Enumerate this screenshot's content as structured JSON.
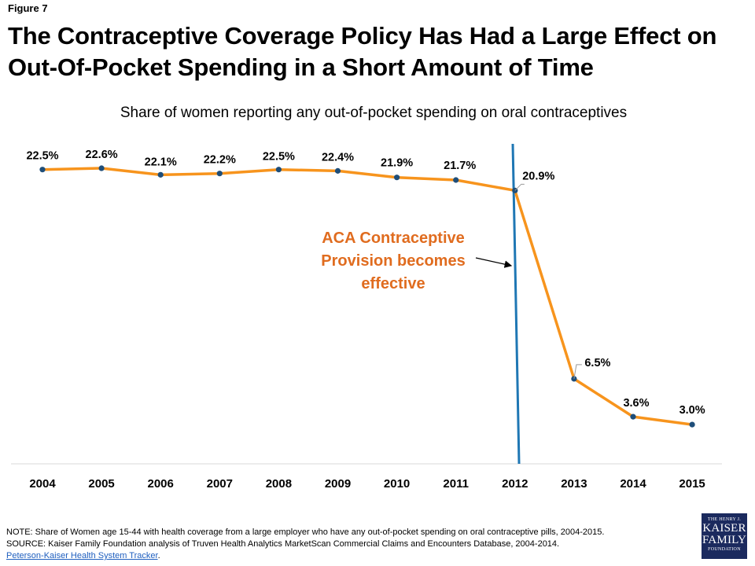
{
  "figure_label": "Figure 7",
  "title_line1": "The Contraceptive Coverage Policy Has Had a Large Effect on",
  "title_line2": "Out-Of-Pocket Spending in a Short Amount of Time",
  "colors": {
    "line": "#F7941D",
    "point": "#1F4E79",
    "vline": "#1F77B4",
    "annotation": "#E06C1F",
    "axis": "#D9D9D9",
    "logo_bg": "#1B2A5E"
  },
  "chart_data": {
    "type": "line",
    "title": "Share of women reporting any out-of-pocket spending on oral contraceptives",
    "xlabel": "",
    "ylabel": "",
    "categories": [
      "2004",
      "2005",
      "2006",
      "2007",
      "2008",
      "2009",
      "2010",
      "2011",
      "2012",
      "2013",
      "2014",
      "2015"
    ],
    "series": [
      {
        "values": [
          22.5,
          22.6,
          22.1,
          22.2,
          22.5,
          22.4,
          21.9,
          21.7,
          20.9,
          6.5,
          3.6,
          3.0
        ],
        "labels": [
          "22.5%",
          "22.6%",
          "22.1%",
          "22.2%",
          "22.5%",
          "22.4%",
          "21.9%",
          "21.7%",
          "20.9%",
          "6.5%",
          "3.6%",
          "3.0%"
        ]
      }
    ],
    "ylim": [
      0,
      25
    ],
    "grid": false,
    "vertical_marker": {
      "at_category": "2012",
      "label_lines": [
        "ACA Contraceptive",
        "Provision becomes",
        "effective"
      ]
    }
  },
  "footnotes": {
    "note": "NOTE: Share of Women age 15-44 with health coverage from a large employer who have any out-of-pocket spending on oral contraceptive  pills, 2004-2015.",
    "source": "SOURCE: Kaiser Family Foundation analysis of Truven Health Analytics MarketScan Commercial  Claims and Encounters Database,  2004-2014.",
    "link_text": "Peterson-Kaiser  Health  System Tracker",
    "link_suffix": "."
  },
  "logo": {
    "line1": "THE HENRY J.",
    "line2": "KAISER",
    "line3": "FAMILY",
    "line4": "FOUNDATION"
  }
}
